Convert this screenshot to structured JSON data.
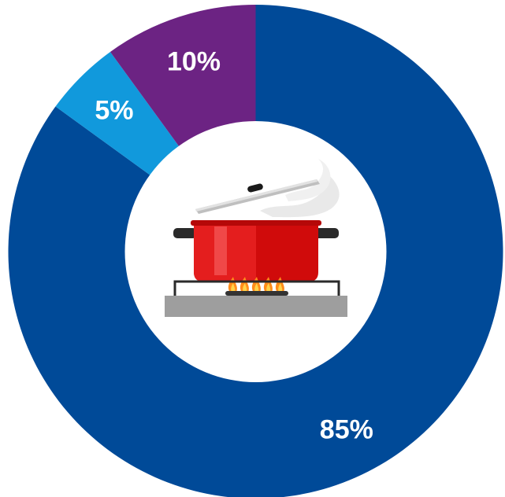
{
  "chart_data": {
    "type": "pie",
    "donut": true,
    "categories": [
      "",
      "",
      ""
    ],
    "values": [
      85,
      5,
      10
    ],
    "labels": [
      "85%",
      "5%",
      "10%"
    ],
    "colors": [
      "#004a98",
      "#1199dc",
      "#6c2383"
    ],
    "title": "",
    "legend": "none",
    "center_icon": "cooking-pot-on-stove-icon"
  }
}
